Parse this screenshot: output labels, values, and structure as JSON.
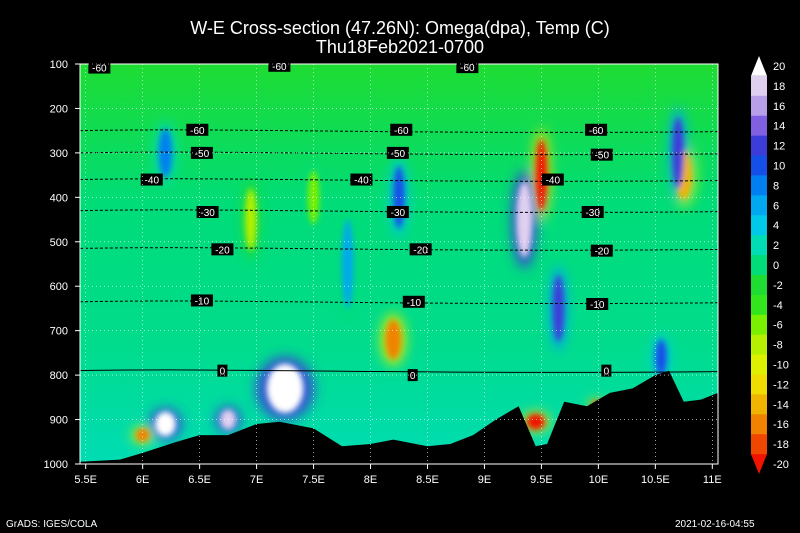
{
  "chart_data": {
    "type": "heatmap",
    "title": "W-E Cross-section (47.26N): Omega(dpa), Temp (C)",
    "subtitle": "Thu18Feb2021-0700",
    "xlim": [
      5.45,
      11.05
    ],
    "ylim": [
      1000,
      100
    ],
    "x_ticks": [
      "5.5E",
      "6E",
      "6.5E",
      "7E",
      "7.5E",
      "8E",
      "8.5E",
      "9E",
      "9.5E",
      "10E",
      "10.5E",
      "11E"
    ],
    "x_tick_values": [
      5.5,
      6,
      6.5,
      7,
      7.5,
      8,
      8.5,
      9,
      9.5,
      10,
      10.5,
      11
    ],
    "y_ticks": [
      "100",
      "200",
      "300",
      "400",
      "500",
      "600",
      "700",
      "800",
      "900",
      "1000"
    ],
    "y_tick_values": [
      100,
      200,
      300,
      400,
      500,
      600,
      700,
      800,
      900,
      1000
    ],
    "colorbar": {
      "labels": [
        "20",
        "18",
        "16",
        "14",
        "12",
        "10",
        "8",
        "6",
        "4",
        "2",
        "0",
        "-2",
        "-4",
        "-6",
        "-8",
        "-10",
        "-12",
        "-14",
        "-16",
        "-18",
        "-20"
      ],
      "colors": [
        "#ffffff",
        "#e0d0f0",
        "#b8a0e8",
        "#8060e0",
        "#3c3cd8",
        "#1450e8",
        "#0080f0",
        "#00a8f0",
        "#00c8e8",
        "#00dcb4",
        "#00dc78",
        "#1edc32",
        "#32e61e",
        "#78f000",
        "#b4f000",
        "#dcf000",
        "#f0dc00",
        "#f0b400",
        "#f08200",
        "#f04600",
        "#f01400"
      ]
    },
    "temperature_isotherms": [
      {
        "label": "-60",
        "pressure": 250
      },
      {
        "label": "-50",
        "pressure": 300
      },
      {
        "label": "-40",
        "pressure": 360
      },
      {
        "label": "-30",
        "pressure": 430
      },
      {
        "label": "-20",
        "pressure": 515
      },
      {
        "label": "-10",
        "pressure": 635
      },
      {
        "label": "0",
        "pressure": 790
      }
    ],
    "isotherm_labels": [
      {
        "text": "-60",
        "x": 5.62,
        "p": 108
      },
      {
        "text": "-60",
        "x": 7.2,
        "p": 104
      },
      {
        "text": "-60",
        "x": 8.85,
        "p": 107
      },
      {
        "text": "-60",
        "x": 6.48,
        "p": 248
      },
      {
        "text": "-60",
        "x": 8.27,
        "p": 248
      },
      {
        "text": "-60",
        "x": 9.98,
        "p": 248
      },
      {
        "text": "-50",
        "x": 6.52,
        "p": 300
      },
      {
        "text": "-50",
        "x": 8.24,
        "p": 300
      },
      {
        "text": "-50",
        "x": 10.03,
        "p": 304
      },
      {
        "text": "-40",
        "x": 6.08,
        "p": 360
      },
      {
        "text": "-40",
        "x": 7.92,
        "p": 360
      },
      {
        "text": "-40",
        "x": 9.6,
        "p": 360
      },
      {
        "text": "-30",
        "x": 6.57,
        "p": 433
      },
      {
        "text": "-30",
        "x": 8.24,
        "p": 433
      },
      {
        "text": "-30",
        "x": 9.95,
        "p": 433
      },
      {
        "text": "-20",
        "x": 6.7,
        "p": 517
      },
      {
        "text": "-20",
        "x": 8.44,
        "p": 517
      },
      {
        "text": "-20",
        "x": 10.03,
        "p": 520
      },
      {
        "text": "-10",
        "x": 6.52,
        "p": 632
      },
      {
        "text": "-10",
        "x": 8.38,
        "p": 635
      },
      {
        "text": "-10",
        "x": 9.99,
        "p": 640
      },
      {
        "text": "0",
        "x": 6.7,
        "p": 790
      },
      {
        "text": "0",
        "x": 8.37,
        "p": 800
      },
      {
        "text": "0",
        "x": 10.07,
        "p": 790
      }
    ],
    "terrain_surface_pressure": [
      [
        5.45,
        995
      ],
      [
        5.8,
        990
      ],
      [
        6.0,
        975
      ],
      [
        6.3,
        950
      ],
      [
        6.5,
        935
      ],
      [
        6.75,
        935
      ],
      [
        7.0,
        910
      ],
      [
        7.2,
        905
      ],
      [
        7.5,
        920
      ],
      [
        7.75,
        960
      ],
      [
        8.0,
        955
      ],
      [
        8.2,
        945
      ],
      [
        8.5,
        960
      ],
      [
        8.7,
        955
      ],
      [
        8.9,
        935
      ],
      [
        9.1,
        900
      ],
      [
        9.3,
        870
      ],
      [
        9.45,
        960
      ],
      [
        9.55,
        955
      ],
      [
        9.7,
        860
      ],
      [
        9.9,
        870
      ],
      [
        10.1,
        840
      ],
      [
        10.3,
        830
      ],
      [
        10.5,
        800
      ],
      [
        10.62,
        790
      ],
      [
        10.75,
        860
      ],
      [
        10.9,
        855
      ],
      [
        11.05,
        840
      ]
    ],
    "omega_features": [
      {
        "x": 9.5,
        "p": 350,
        "w": 0.05,
        "h": 160,
        "v": -20
      },
      {
        "x": 9.45,
        "p": 905,
        "w": 0.08,
        "h": 35,
        "v": -20
      },
      {
        "x": 8.2,
        "p": 720,
        "w": 0.07,
        "h": 90,
        "v": -16
      },
      {
        "x": 10.75,
        "p": 350,
        "w": 0.07,
        "h": 110,
        "v": -14
      },
      {
        "x": 6.0,
        "p": 935,
        "w": 0.06,
        "h": 30,
        "v": -16
      },
      {
        "x": 9.98,
        "p": 870,
        "w": 0.04,
        "h": 25,
        "v": -18
      },
      {
        "x": 7.25,
        "p": 830,
        "w": 0.16,
        "h": 110,
        "v": 20
      },
      {
        "x": 6.2,
        "p": 910,
        "w": 0.09,
        "h": 55,
        "v": 20
      },
      {
        "x": 6.75,
        "p": 900,
        "w": 0.07,
        "h": 45,
        "v": 18
      },
      {
        "x": 9.35,
        "p": 450,
        "w": 0.07,
        "h": 170,
        "v": 18
      },
      {
        "x": 9.65,
        "p": 650,
        "w": 0.05,
        "h": 150,
        "v": 12
      },
      {
        "x": 8.25,
        "p": 400,
        "w": 0.05,
        "h": 140,
        "v": 10
      },
      {
        "x": 10.7,
        "p": 300,
        "w": 0.05,
        "h": 160,
        "v": 12
      },
      {
        "x": 6.2,
        "p": 300,
        "w": 0.06,
        "h": 110,
        "v": 8
      },
      {
        "x": 10.55,
        "p": 760,
        "w": 0.05,
        "h": 80,
        "v": 10
      },
      {
        "x": 7.8,
        "p": 550,
        "w": 0.05,
        "h": 200,
        "v": 6
      },
      {
        "x": 6.95,
        "p": 450,
        "w": 0.05,
        "h": 140,
        "v": -8
      },
      {
        "x": 7.5,
        "p": 400,
        "w": 0.05,
        "h": 120,
        "v": -6
      }
    ]
  },
  "footer": {
    "left": "GrADS: IGES/COLA",
    "right": "2021-02-16-04:55"
  }
}
